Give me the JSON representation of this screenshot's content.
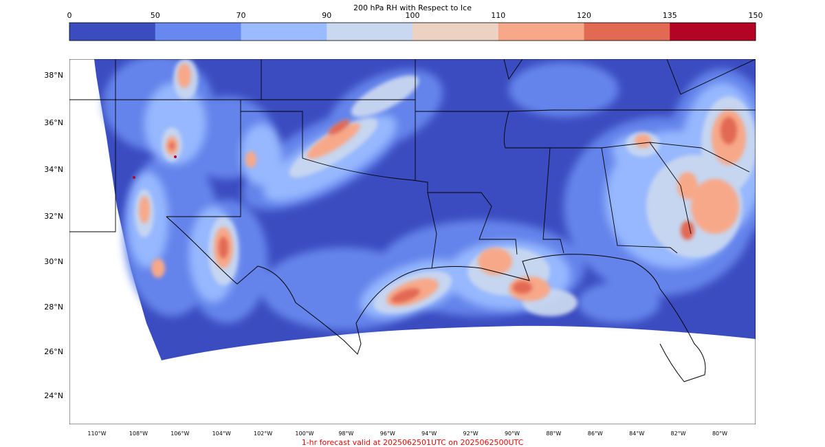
{
  "colorbar": {
    "title": "200 hPa RH with Respect to Ice",
    "bounds": [
      0,
      50,
      70,
      90,
      100,
      110,
      120,
      135,
      150
    ],
    "tick_labels": [
      "0",
      "50",
      "70",
      "90",
      "100",
      "110",
      "120",
      "135",
      "150"
    ],
    "colors": [
      "#3b4cc0",
      "#6788ee",
      "#9abbff",
      "#c9d7f0",
      "#edd1c2",
      "#f7a889",
      "#e26952",
      "#b40426"
    ]
  },
  "map": {
    "projection": "lambert-conformal",
    "region": "Southern United States / Gulf of Mexico",
    "lat_labels": [
      "38°N",
      "36°N",
      "34°N",
      "32°N",
      "30°N",
      "28°N",
      "26°N",
      "24°N"
    ],
    "lon_labels": [
      "110°W",
      "108°W",
      "106°W",
      "104°W",
      "102°W",
      "100°W",
      "98°W",
      "96°W",
      "94°W",
      "92°W",
      "90°W",
      "88°W",
      "86°W",
      "84°W",
      "82°W",
      "80°W"
    ],
    "background_color": "#3b4cc0",
    "outside_domain_color": "#ffffff",
    "moist_areas": [
      {
        "region": "New Mexico / Colorado",
        "level": "100-120"
      },
      {
        "region": "Texas Panhandle to Oklahoma",
        "level": "110-135"
      },
      {
        "region": "Texas Gulf coast",
        "level": "110-135"
      },
      {
        "region": "Louisiana coast",
        "level": "110-135"
      },
      {
        "region": "Georgia / South Carolina",
        "level": "110-135"
      }
    ]
  },
  "footer": {
    "valid_text": "1-hr forecast valid at 2025062501UTC on 2025062500UTC",
    "color": "#ff0000"
  }
}
